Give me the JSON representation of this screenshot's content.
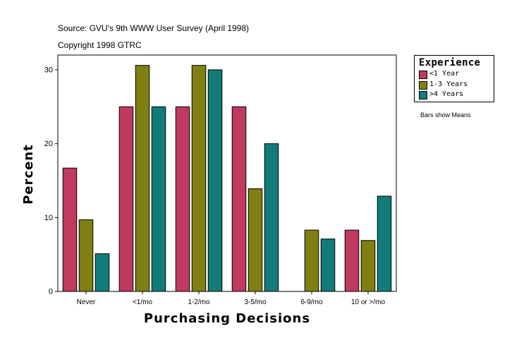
{
  "header": {
    "source": "Source: GVU's 9th WWW User Survey (April 1998)",
    "copyright": "Copyright 1998 GTRC"
  },
  "legend": {
    "title": "Experience"
  },
  "note": "Bars show Means",
  "colors": {
    "less_than_1_year": "#c0395f",
    "one_to_three_years": "#808012",
    "more_than_4_years": "#127c7c"
  },
  "chart_data": {
    "type": "bar",
    "title": "",
    "xlabel": "Purchasing Decisions",
    "ylabel": "Percent",
    "categories": [
      "Never",
      "<1/mo",
      "1-2/mo",
      "3-5/mo",
      "6-9/mo",
      "10 or >/mo"
    ],
    "series": [
      {
        "name": "<1 Year",
        "color": "#c0395f",
        "values": [
          16.7,
          25.0,
          25.0,
          25.0,
          0,
          8.3
        ]
      },
      {
        "name": "1-3 Years",
        "color": "#808012",
        "values": [
          9.7,
          30.6,
          30.6,
          13.9,
          8.3,
          6.9
        ]
      },
      {
        "name": ">4 Years",
        "color": "#127c7c",
        "values": [
          5.1,
          25.0,
          30.0,
          20.0,
          7.1,
          12.9
        ]
      }
    ],
    "ylim": [
      0,
      32
    ],
    "yticks": [
      0,
      10,
      20,
      30
    ],
    "grid": false,
    "legend_position": "top-right"
  }
}
